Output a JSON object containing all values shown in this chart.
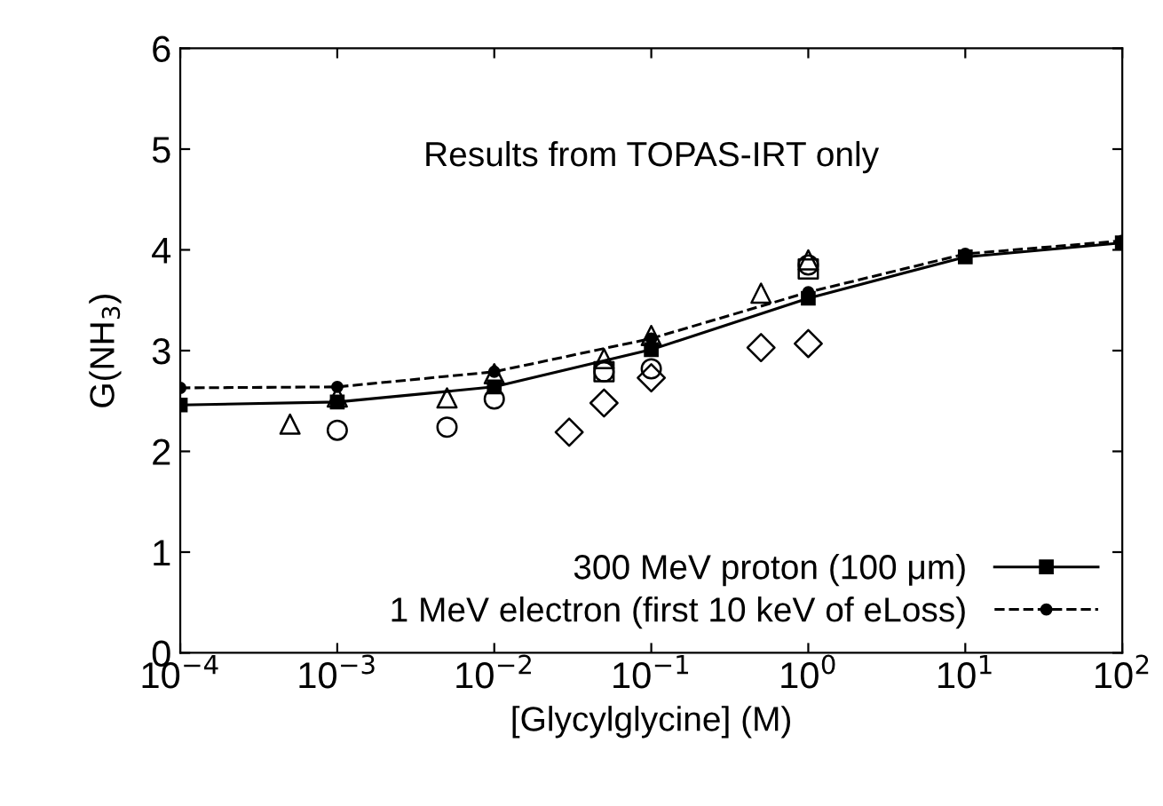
{
  "chart_data": {
    "type": "line",
    "xlabel": "[Glycylglycine] (M)",
    "ylabel": "G(NH$_{3}$)",
    "annotations": [
      "Results from TOPAS-IRT only"
    ],
    "log": "x",
    "xlim": [
      0.0001,
      100
    ],
    "ylim": [
      0,
      6
    ],
    "xticks": [
      {
        "value": 0.0001,
        "label": "10$^{−4}$"
      },
      {
        "value": 0.001,
        "label": "10$^{−3}$"
      },
      {
        "value": 0.01,
        "label": "10$^{−2}$"
      },
      {
        "value": 0.1,
        "label": "10$^{−1}$"
      },
      {
        "value": 1,
        "label": "10$^{0}$"
      },
      {
        "value": 10,
        "label": "10$^{1}$"
      },
      {
        "value": 100,
        "label": "10$^{2}$"
      }
    ],
    "yticks": [
      0,
      1,
      2,
      3,
      4,
      5,
      6
    ],
    "grid": false,
    "legend": "bottom right",
    "series": [
      {
        "name": "300 MeV proton (100 μm)",
        "color": "#000000",
        "marker": "square",
        "line_style": "solid",
        "x": [
          0.0001,
          0.001,
          0.01,
          0.1,
          1,
          10,
          100
        ],
        "values": [
          2.46,
          2.49,
          2.64,
          3.01,
          3.52,
          3.93,
          4.07
        ]
      },
      {
        "name": "1 MeV electron (first 10 keV of eLoss)",
        "color": "#000000",
        "marker": "circle",
        "line_style": "dashed",
        "x": [
          0.0001,
          0.001,
          0.01,
          0.1,
          1,
          10,
          100
        ],
        "values": [
          2.63,
          2.64,
          2.79,
          3.12,
          3.58,
          3.96,
          4.09
        ]
      },
      {
        "type": "scatter",
        "color": "#000000",
        "marker": "triangle",
        "x": [
          0.0005,
          0.001,
          0.005,
          0.01,
          0.05,
          0.1,
          0.5,
          1
        ],
        "values": [
          2.27,
          2.54,
          2.53,
          2.77,
          2.92,
          3.15,
          3.57,
          3.9
        ]
      },
      {
        "type": "scatter",
        "color": "#000000",
        "marker": "circle",
        "x": [
          0.001,
          0.005,
          0.01,
          0.05,
          0.1,
          1
        ],
        "values": [
          2.21,
          2.24,
          2.52,
          2.79,
          2.82,
          3.85
        ]
      },
      {
        "type": "scatter",
        "color": "#000000",
        "marker": "diamond",
        "x": [
          0.03,
          0.05,
          0.1,
          0.5,
          1
        ],
        "values": [
          2.19,
          2.48,
          2.73,
          3.03,
          3.07
        ]
      },
      {
        "type": "scatter",
        "color": "#000000",
        "marker": "square",
        "x": [
          0.05,
          1
        ],
        "values": [
          2.79,
          3.81
        ]
      }
    ]
  }
}
